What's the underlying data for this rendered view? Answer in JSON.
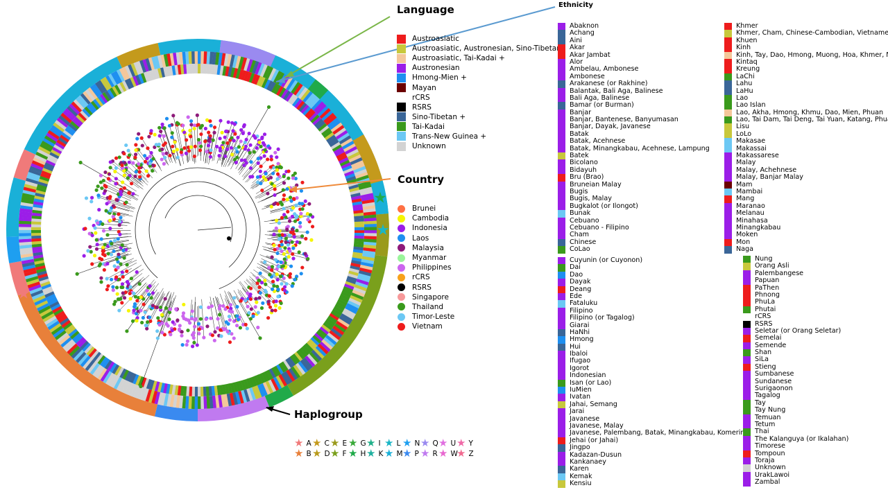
{
  "labels": {
    "language": "Language",
    "ethnicity": "Ethnicity",
    "country": "Country",
    "haplogroup": "Haplogroup"
  },
  "language_legend": [
    {
      "label": "Austroasiatic",
      "color": "#ee1c1c"
    },
    {
      "label": "Austroasiatic, Austronesian, Sino-Tibetan",
      "color": "#c8c83c"
    },
    {
      "label": "Austroasiatic, Tai-Kadai +",
      "color": "#f4c79a"
    },
    {
      "label": "Austronesian",
      "color": "#9b1ee8"
    },
    {
      "label": "Hmong-Mien +",
      "color": "#1e8ff0"
    },
    {
      "label": "Mayan",
      "color": "#6b0000"
    },
    {
      "label": "rCRS",
      "color": "#ffffff"
    },
    {
      "label": "RSRS",
      "color": "#000000"
    },
    {
      "label": "Sino-Tibetan +",
      "color": "#3a6698"
    },
    {
      "label": "Tai-Kadai",
      "color": "#3a9a1c"
    },
    {
      "label": "Trans-New Guinea +",
      "color": "#6cc8f4"
    },
    {
      "label": "Unknown",
      "color": "#d3d3d3"
    }
  ],
  "country_legend": [
    {
      "label": "Brunei",
      "color": "#ff7043"
    },
    {
      "label": "Cambodia",
      "color": "#f5f500"
    },
    {
      "label": "Indonesia",
      "color": "#9b1ee8"
    },
    {
      "label": "Laos",
      "color": "#1e8ff0"
    },
    {
      "label": "Malaysia",
      "color": "#8e1a7a"
    },
    {
      "label": "Myanmar",
      "color": "#9af59a"
    },
    {
      "label": "Philippines",
      "color": "#cc66ee"
    },
    {
      "label": "rCRS",
      "color": "#f7a21c"
    },
    {
      "label": "RSRS",
      "color": "#000000"
    },
    {
      "label": "Singapore",
      "color": "#f7999a"
    },
    {
      "label": "Thailand",
      "color": "#3a9a1c"
    },
    {
      "label": "Timor-Leste",
      "color": "#6cc8f4"
    },
    {
      "label": "Vietnam",
      "color": "#ee1c1c"
    }
  ],
  "ethnicity_col1": [
    {
      "label": "Abaknon",
      "color": "#9b1ee8"
    },
    {
      "label": "Achang",
      "color": "#3a6698"
    },
    {
      "label": "Aini",
      "color": "#3a6698"
    },
    {
      "label": "Akar",
      "color": "#ee1c1c"
    },
    {
      "label": "Akar Jambat",
      "color": "#ee1c1c"
    },
    {
      "label": "Alor",
      "color": "#9b1ee8"
    },
    {
      "label": "Ambelau, Ambonese",
      "color": "#9b1ee8"
    },
    {
      "label": "Ambonese",
      "color": "#9b1ee8"
    },
    {
      "label": "Arakanese (or Rakhine)",
      "color": "#3a6698"
    },
    {
      "label": "Balantak, Bali Aga, Balinese",
      "color": "#9b1ee8"
    },
    {
      "label": "Bali Aga, Balinese",
      "color": "#9b1ee8"
    },
    {
      "label": "Bamar (or Burman)",
      "color": "#3a6698"
    },
    {
      "label": "Banjar",
      "color": "#9b1ee8"
    },
    {
      "label": "Banjar, Bantenese, Banyumasan",
      "color": "#9b1ee8"
    },
    {
      "label": "Banjar, Dayak, Javanese",
      "color": "#9b1ee8"
    },
    {
      "label": "Batak",
      "color": "#9b1ee8"
    },
    {
      "label": "Batak, Acehnese",
      "color": "#9b1ee8"
    },
    {
      "label": "Batak, Minangkabau, Acehnese, Lampung",
      "color": "#9b1ee8"
    },
    {
      "label": "Batek",
      "color": "#c8c83c"
    },
    {
      "label": "Bicolano",
      "color": "#9b1ee8"
    },
    {
      "label": "Bidayuh",
      "color": "#9b1ee8"
    },
    {
      "label": "Bru (Brao)",
      "color": "#ee1c1c"
    },
    {
      "label": "Bruneian Malay",
      "color": "#9b1ee8"
    },
    {
      "label": "Bugis",
      "color": "#9b1ee8"
    },
    {
      "label": "Bugis, Malay",
      "color": "#9b1ee8"
    },
    {
      "label": "Bugkalot (or Ilongot)",
      "color": "#9b1ee8"
    },
    {
      "label": "Bunak",
      "color": "#6cc8f4"
    },
    {
      "label": "Cebuano",
      "color": "#9b1ee8"
    },
    {
      "label": "Cebuano - Filipino",
      "color": "#9b1ee8"
    },
    {
      "label": "Cham",
      "color": "#9b1ee8"
    },
    {
      "label": "Chinese",
      "color": "#3a6698"
    },
    {
      "label": "CoLao",
      "color": "#3a9a1c"
    }
  ],
  "ethnicity_col2": [
    {
      "label": "Cuyunin (or Cuyonon)",
      "color": "#9b1ee8"
    },
    {
      "label": "Dai",
      "color": "#3a9a1c"
    },
    {
      "label": "Dao",
      "color": "#1e8ff0"
    },
    {
      "label": "Dayak",
      "color": "#9b1ee8"
    },
    {
      "label": "Deang",
      "color": "#ee1c1c"
    },
    {
      "label": "Ede",
      "color": "#9b1ee8"
    },
    {
      "label": "Fataluku",
      "color": "#6cc8f4"
    },
    {
      "label": "Filipino",
      "color": "#9b1ee8"
    },
    {
      "label": "Filipino (or Tagalog)",
      "color": "#9b1ee8"
    },
    {
      "label": "Giarai",
      "color": "#9b1ee8"
    },
    {
      "label": "HaNhi",
      "color": "#3a6698"
    },
    {
      "label": "Hmong",
      "color": "#1e8ff0"
    },
    {
      "label": "Hui",
      "color": "#3a6698"
    },
    {
      "label": "Ibaloi",
      "color": "#9b1ee8"
    },
    {
      "label": "Ifugao",
      "color": "#9b1ee8"
    },
    {
      "label": "Igorot",
      "color": "#9b1ee8"
    },
    {
      "label": "Indonesian",
      "color": "#9b1ee8"
    },
    {
      "label": "Isan (or Lao)",
      "color": "#3a9a1c"
    },
    {
      "label": "IuMien",
      "color": "#1e8ff0"
    },
    {
      "label": "Ivatan",
      "color": "#9b1ee8"
    },
    {
      "label": "Jahai, Semang",
      "color": "#c8c83c"
    },
    {
      "label": "Jarai",
      "color": "#9b1ee8"
    },
    {
      "label": "Javanese",
      "color": "#9b1ee8"
    },
    {
      "label": "Javanese, Malay",
      "color": "#9b1ee8"
    },
    {
      "label": "Javanese, Palembang, Batak, Minangkabau, Komering",
      "color": "#9b1ee8"
    },
    {
      "label": "Jehai (or Jahai)",
      "color": "#ee1c1c"
    },
    {
      "label": "Jingpo",
      "color": "#3a6698"
    },
    {
      "label": "Kadazan-Dusun",
      "color": "#9b1ee8"
    },
    {
      "label": "Kankanaey",
      "color": "#9b1ee8"
    },
    {
      "label": "Karen",
      "color": "#3a6698"
    },
    {
      "label": "Kemak",
      "color": "#6cc8f4"
    },
    {
      "label": "Kensiu",
      "color": "#c8c83c"
    }
  ],
  "ethnicity_col3": [
    {
      "label": "Khmer",
      "color": "#ee1c1c"
    },
    {
      "label": "Khmer, Cham, Chinese-Cambodian, Vietnamese",
      "color": "#c8c83c"
    },
    {
      "label": "Khuen",
      "color": "#ee1c1c"
    },
    {
      "label": "Kinh",
      "color": "#ee1c1c"
    },
    {
      "label": "Kinh, Tay, Dao, Hmong, Muong, Hoa, Khmer, Nung",
      "color": "#f4c79a"
    },
    {
      "label": "Kintaq",
      "color": "#ee1c1c"
    },
    {
      "label": "Kreung",
      "color": "#ee1c1c"
    },
    {
      "label": "LaChi",
      "color": "#3a9a1c"
    },
    {
      "label": "Lahu",
      "color": "#3a6698"
    },
    {
      "label": "LaHu",
      "color": "#3a6698"
    },
    {
      "label": "Lao",
      "color": "#3a9a1c"
    },
    {
      "label": "Lao Islan",
      "color": "#3a9a1c"
    },
    {
      "label": "Lao, Akha, Hmong, Khmu, Dao, Mien, Phuan",
      "color": "#f4c79a"
    },
    {
      "label": "Lao, Tai Dam, Tai Deng, Tai Yuan, Katang, Phuan",
      "color": "#3a9a1c"
    },
    {
      "label": "Lisu",
      "color": "#c8c83c"
    },
    {
      "label": "LoLo",
      "color": "#c8c83c"
    },
    {
      "label": "Makasae",
      "color": "#6cc8f4"
    },
    {
      "label": "Makassai",
      "color": "#6cc8f4"
    },
    {
      "label": "Makassarese",
      "color": "#9b1ee8"
    },
    {
      "label": "Malay",
      "color": "#9b1ee8"
    },
    {
      "label": "Malay, Achehnese",
      "color": "#9b1ee8"
    },
    {
      "label": "Malay, Banjar Malay",
      "color": "#9b1ee8"
    },
    {
      "label": "Mam",
      "color": "#6b0000"
    },
    {
      "label": "Mambai",
      "color": "#6cc8f4"
    },
    {
      "label": "Mang",
      "color": "#ee1c1c"
    },
    {
      "label": "Maranao",
      "color": "#9b1ee8"
    },
    {
      "label": "Melanau",
      "color": "#9b1ee8"
    },
    {
      "label": "Minahasa",
      "color": "#9b1ee8"
    },
    {
      "label": "Minangkabau",
      "color": "#9b1ee8"
    },
    {
      "label": "Moken",
      "color": "#9b1ee8"
    },
    {
      "label": "Mon",
      "color": "#ee1c1c"
    },
    {
      "label": "Naga",
      "color": "#3a6698"
    }
  ],
  "ethnicity_col4": [
    {
      "label": "Nung",
      "color": "#3a9a1c"
    },
    {
      "label": "Orang Asli",
      "color": "#c8c83c"
    },
    {
      "label": "Palembangese",
      "color": "#9b1ee8"
    },
    {
      "label": "Papuan",
      "color": "#9b1ee8"
    },
    {
      "label": "PaThen",
      "color": "#ee1c1c"
    },
    {
      "label": "Phnong",
      "color": "#ee1c1c"
    },
    {
      "label": "PhuLa",
      "color": "#ee1c1c"
    },
    {
      "label": "Phutai",
      "color": "#3a9a1c"
    },
    {
      "label": "rCRS",
      "color": "#ffffff"
    },
    {
      "label": "RSRS",
      "color": "#000000"
    },
    {
      "label": "Seletar (or Orang Seletar)",
      "color": "#9b1ee8"
    },
    {
      "label": "Semelai",
      "color": "#ee1c1c"
    },
    {
      "label": "Semende",
      "color": "#9b1ee8"
    },
    {
      "label": "Shan",
      "color": "#3a9a1c"
    },
    {
      "label": "SiLa",
      "color": "#9b1ee8"
    },
    {
      "label": "Stieng",
      "color": "#ee1c1c"
    },
    {
      "label": "Sumbanese",
      "color": "#9b1ee8"
    },
    {
      "label": "Sundanese",
      "color": "#9b1ee8"
    },
    {
      "label": "Surigaonon",
      "color": "#9b1ee8"
    },
    {
      "label": "Tagalog",
      "color": "#9b1ee8"
    },
    {
      "label": "Tay",
      "color": "#3a9a1c"
    },
    {
      "label": "Tay Nung",
      "color": "#3a9a1c"
    },
    {
      "label": "Temuan",
      "color": "#9b1ee8"
    },
    {
      "label": "Tetum",
      "color": "#9b1ee8"
    },
    {
      "label": "Thai",
      "color": "#3a9a1c"
    },
    {
      "label": "The Kalanguya (or Ikalahan)",
      "color": "#9b1ee8"
    },
    {
      "label": "Timorese",
      "color": "#9b1ee8"
    },
    {
      "label": "Tompoun",
      "color": "#ee1c1c"
    },
    {
      "label": "Toraja",
      "color": "#9b1ee8"
    },
    {
      "label": "Unknown",
      "color": "#d3d3d3"
    },
    {
      "label": "UrakLawoi",
      "color": "#9b1ee8"
    },
    {
      "label": "Zambal",
      "color": "#9b1ee8"
    }
  ],
  "haplogroup_legend": [
    [
      {
        "label": "A",
        "color": "#f07a7a"
      },
      {
        "label": "C",
        "color": "#c49a1c"
      },
      {
        "label": "E",
        "color": "#9a9a1c"
      },
      {
        "label": "G",
        "color": "#3aaa3a"
      },
      {
        "label": "I",
        "color": "#20b08a"
      },
      {
        "label": "L",
        "color": "#1ab5c5"
      },
      {
        "label": "N",
        "color": "#1e9ff0"
      },
      {
        "label": "Q",
        "color": "#9a8af0"
      },
      {
        "label": "U",
        "color": "#e070e0"
      },
      {
        "label": "Y",
        "color": "#f06aa8"
      }
    ],
    [
      {
        "label": "B",
        "color": "#e8803a"
      },
      {
        "label": "D",
        "color": "#b89a1c"
      },
      {
        "label": "F",
        "color": "#7aa01c"
      },
      {
        "label": "H",
        "color": "#20aa4a"
      },
      {
        "label": "K",
        "color": "#20b0a0"
      },
      {
        "label": "M",
        "color": "#1ab0d8"
      },
      {
        "label": "P",
        "color": "#3a8af0"
      },
      {
        "label": "R",
        "color": "#c07af0"
      },
      {
        "label": "W",
        "color": "#e868d0"
      },
      {
        "label": "Z",
        "color": "#f06a90"
      }
    ]
  ]
}
